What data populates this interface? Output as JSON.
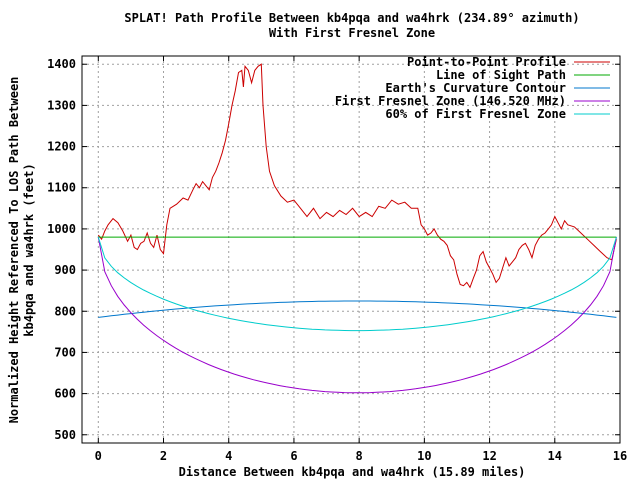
{
  "chart_data": {
    "type": "line",
    "title": "SPLAT! Path Profile Between kb4pqa and wa4hrk (234.89° azimuth)",
    "subtitle": "With First Fresnel Zone",
    "xlabel": "Distance Between kb4pqa and wa4hrk (15.89 miles)",
    "ylabel": [
      "Normalized Height Referenced To LOS Path Between",
      "kb4pqa and wa4hrk (feet)"
    ],
    "xlim": [
      -0.5,
      16
    ],
    "ylim": [
      480,
      1420
    ],
    "xticks": [
      0,
      2,
      4,
      6,
      8,
      10,
      12,
      14,
      16
    ],
    "yticks": [
      500,
      600,
      700,
      800,
      900,
      1000,
      1100,
      1200,
      1300,
      1400
    ],
    "grid": true,
    "legend_position": "top-right",
    "series": [
      {
        "name": "Point-to-Point Profile",
        "color": "#cc0000",
        "points": [
          [
            0.0,
            985
          ],
          [
            0.1,
            975
          ],
          [
            0.2,
            995
          ],
          [
            0.3,
            1010
          ],
          [
            0.45,
            1025
          ],
          [
            0.6,
            1015
          ],
          [
            0.75,
            995
          ],
          [
            0.9,
            970
          ],
          [
            1.0,
            985
          ],
          [
            1.1,
            955
          ],
          [
            1.2,
            950
          ],
          [
            1.3,
            965
          ],
          [
            1.4,
            970
          ],
          [
            1.5,
            990
          ],
          [
            1.6,
            965
          ],
          [
            1.7,
            955
          ],
          [
            1.8,
            985
          ],
          [
            1.9,
            950
          ],
          [
            2.0,
            940
          ],
          [
            2.1,
            1010
          ],
          [
            2.2,
            1050
          ],
          [
            2.4,
            1060
          ],
          [
            2.6,
            1075
          ],
          [
            2.75,
            1070
          ],
          [
            2.9,
            1095
          ],
          [
            3.0,
            1110
          ],
          [
            3.1,
            1100
          ],
          [
            3.2,
            1115
          ],
          [
            3.3,
            1105
          ],
          [
            3.4,
            1095
          ],
          [
            3.5,
            1125
          ],
          [
            3.6,
            1140
          ],
          [
            3.7,
            1160
          ],
          [
            3.8,
            1185
          ],
          [
            3.9,
            1215
          ],
          [
            4.0,
            1255
          ],
          [
            4.1,
            1300
          ],
          [
            4.2,
            1335
          ],
          [
            4.3,
            1380
          ],
          [
            4.4,
            1385
          ],
          [
            4.45,
            1345
          ],
          [
            4.5,
            1395
          ],
          [
            4.6,
            1385
          ],
          [
            4.7,
            1355
          ],
          [
            4.8,
            1385
          ],
          [
            4.9,
            1395
          ],
          [
            5.0,
            1400
          ],
          [
            5.05,
            1300
          ],
          [
            5.15,
            1200
          ],
          [
            5.25,
            1140
          ],
          [
            5.4,
            1105
          ],
          [
            5.6,
            1080
          ],
          [
            5.8,
            1065
          ],
          [
            6.0,
            1070
          ],
          [
            6.2,
            1050
          ],
          [
            6.4,
            1030
          ],
          [
            6.6,
            1050
          ],
          [
            6.8,
            1025
          ],
          [
            7.0,
            1040
          ],
          [
            7.2,
            1030
          ],
          [
            7.4,
            1045
          ],
          [
            7.6,
            1035
          ],
          [
            7.8,
            1050
          ],
          [
            8.0,
            1030
          ],
          [
            8.2,
            1040
          ],
          [
            8.4,
            1030
          ],
          [
            8.6,
            1055
          ],
          [
            8.8,
            1050
          ],
          [
            9.0,
            1070
          ],
          [
            9.2,
            1060
          ],
          [
            9.4,
            1065
          ],
          [
            9.6,
            1050
          ],
          [
            9.8,
            1050
          ],
          [
            9.9,
            1010
          ],
          [
            10.0,
            1000
          ],
          [
            10.1,
            985
          ],
          [
            10.2,
            990
          ],
          [
            10.3,
            1000
          ],
          [
            10.4,
            985
          ],
          [
            10.5,
            975
          ],
          [
            10.6,
            970
          ],
          [
            10.7,
            960
          ],
          [
            10.8,
            935
          ],
          [
            10.9,
            925
          ],
          [
            11.0,
            890
          ],
          [
            11.1,
            865
          ],
          [
            11.2,
            862
          ],
          [
            11.3,
            870
          ],
          [
            11.4,
            858
          ],
          [
            11.5,
            880
          ],
          [
            11.6,
            900
          ],
          [
            11.7,
            935
          ],
          [
            11.8,
            945
          ],
          [
            11.9,
            920
          ],
          [
            12.0,
            905
          ],
          [
            12.1,
            890
          ],
          [
            12.2,
            870
          ],
          [
            12.3,
            880
          ],
          [
            12.4,
            905
          ],
          [
            12.5,
            930
          ],
          [
            12.6,
            910
          ],
          [
            12.7,
            920
          ],
          [
            12.8,
            930
          ],
          [
            12.9,
            950
          ],
          [
            13.0,
            960
          ],
          [
            13.1,
            965
          ],
          [
            13.2,
            950
          ],
          [
            13.3,
            930
          ],
          [
            13.4,
            960
          ],
          [
            13.5,
            975
          ],
          [
            13.6,
            985
          ],
          [
            13.7,
            990
          ],
          [
            13.8,
            1000
          ],
          [
            13.9,
            1010
          ],
          [
            14.0,
            1030
          ],
          [
            14.1,
            1015
          ],
          [
            14.2,
            1000
          ],
          [
            14.3,
            1020
          ],
          [
            14.4,
            1010
          ],
          [
            14.6,
            1005
          ],
          [
            14.8,
            990
          ],
          [
            15.0,
            975
          ],
          [
            15.2,
            960
          ],
          [
            15.4,
            945
          ],
          [
            15.6,
            930
          ],
          [
            15.75,
            925
          ],
          [
            15.89,
            975
          ]
        ]
      },
      {
        "name": "Line of Sight Path",
        "color": "#00aa00",
        "points": [
          [
            0,
            980
          ],
          [
            15.89,
            980
          ]
        ]
      },
      {
        "name": "Earth's Curvature Contour",
        "color": "#0077cc",
        "function": "curvature",
        "peak": 825,
        "ends": 785
      },
      {
        "name": "First Fresnel Zone (146.520 MHz)",
        "color": "#9900cc",
        "function": "fresnel",
        "depth": 378
      },
      {
        "name": "60% of First Fresnel Zone",
        "color": "#00cccc",
        "function": "fresnel",
        "depth": 227
      }
    ]
  }
}
